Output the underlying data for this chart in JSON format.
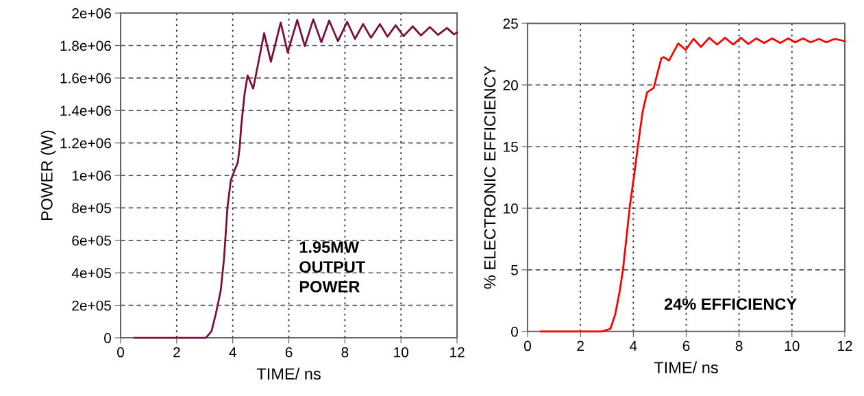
{
  "chart_data": [
    {
      "type": "line",
      "xlabel": "TIME/ ns",
      "ylabel": "POWER (W)",
      "annotations": [
        "1.95MW\nOUTPUT\nPOWER"
      ],
      "grid": true,
      "marker": "none",
      "line_style": "solid",
      "xlim": [
        0,
        12
      ],
      "xticks": [
        0,
        2,
        4,
        6,
        8,
        10,
        12
      ],
      "ylim": [
        0,
        2000000
      ],
      "yticks": [
        {
          "value": 0,
          "label": "0"
        },
        {
          "value": 200000,
          "label": "2e+05"
        },
        {
          "value": 400000,
          "label": "4e+05"
        },
        {
          "value": 600000,
          "label": "6e+05"
        },
        {
          "value": 800000,
          "label": "8e+05"
        },
        {
          "value": 1000000,
          "label": "1e+06"
        },
        {
          "value": 1200000,
          "label": "1.2e+06"
        },
        {
          "value": 1400000,
          "label": "1.4e+06"
        },
        {
          "value": 1600000,
          "label": "1.6e+06"
        },
        {
          "value": 1800000,
          "label": "1.8e+06"
        },
        {
          "value": 2000000,
          "label": "2e+06"
        }
      ],
      "series": [
        {
          "color": "#7b1040",
          "x": [
            0.5,
            3.04,
            3.24,
            3.4,
            3.57,
            3.69,
            3.81,
            3.93,
            4.06,
            4.18,
            4.25,
            4.3,
            4.42,
            4.53,
            4.73,
            5.12,
            5.36,
            5.71,
            5.96,
            6.3,
            6.57,
            6.87,
            7.16,
            7.44,
            7.75,
            8.08,
            8.36,
            8.65,
            8.93,
            9.25,
            9.52,
            9.81,
            10.09,
            10.42,
            10.71,
            11.03,
            11.32,
            11.64,
            11.89,
            12
          ],
          "values": [
            0,
            0,
            40000,
            150000,
            290000,
            490000,
            800000,
            970000,
            1030000,
            1080000,
            1180000,
            1300000,
            1500000,
            1616000,
            1535000,
            1876000,
            1700000,
            1942000,
            1757000,
            1957000,
            1796000,
            1961000,
            1820000,
            1954000,
            1827000,
            1946000,
            1841000,
            1932000,
            1848000,
            1932000,
            1855000,
            1925000,
            1858000,
            1918000,
            1862000,
            1914000,
            1866000,
            1908000,
            1869000,
            1880000
          ]
        }
      ]
    },
    {
      "type": "line",
      "xlabel": "TIME/ ns",
      "ylabel": "% ELECTRONIC EFFICIENCY",
      "annotations": [
        "24% EFFICIENCY"
      ],
      "grid": true,
      "marker": "none",
      "line_style": "solid",
      "xlim": [
        0,
        12
      ],
      "xticks": [
        0,
        2,
        4,
        6,
        8,
        10,
        12
      ],
      "ylim": [
        0,
        25
      ],
      "yticks": [
        0,
        5,
        10,
        15,
        20,
        25
      ],
      "series": [
        {
          "color": "#ff0000",
          "x": [
            0.5,
            2.79,
            3.13,
            3.31,
            3.48,
            3.61,
            3.74,
            3.87,
            4.04,
            4.17,
            4.35,
            4.52,
            4.77,
            5.06,
            5.15,
            5.35,
            5.7,
            5.98,
            6.28,
            6.56,
            6.87,
            7.17,
            7.47,
            7.78,
            8.07,
            8.35,
            8.65,
            8.95,
            9.25,
            9.56,
            9.86,
            10.12,
            10.42,
            10.7,
            11.03,
            11.29,
            11.62,
            12
          ],
          "values": [
            0,
            0,
            0.2,
            1.33,
            3.2,
            5.04,
            7.6,
            10.2,
            12.8,
            15.0,
            17.8,
            19.4,
            19.76,
            22.17,
            22.26,
            21.98,
            23.37,
            22.85,
            23.74,
            23.09,
            23.83,
            23.28,
            23.83,
            23.28,
            23.83,
            23.33,
            23.78,
            23.41,
            23.78,
            23.41,
            23.78,
            23.46,
            23.78,
            23.46,
            23.74,
            23.46,
            23.74,
            23.56
          ]
        }
      ]
    }
  ]
}
